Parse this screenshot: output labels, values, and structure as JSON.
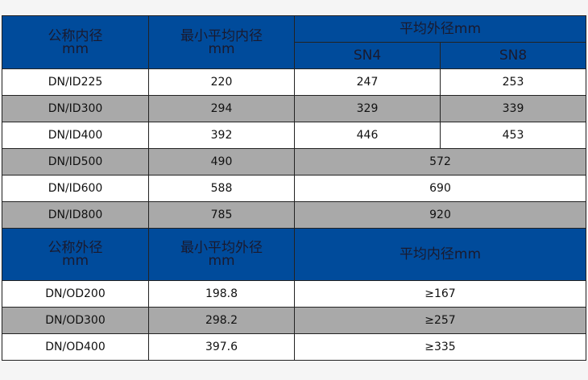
{
  "table1": {
    "header": {
      "col1_line1": "公称内径",
      "col1_line2": "mm",
      "col2_line1": "最小平均内径",
      "col2_line2": "mm",
      "col3": "平均外径mm",
      "sn4": "SN4",
      "sn8": "SN8"
    },
    "rows": [
      {
        "name": "DN/ID225",
        "min": "220",
        "sn4": "247",
        "sn8": "253"
      },
      {
        "name": "DN/ID300",
        "min": "294",
        "sn4": "329",
        "sn8": "339"
      },
      {
        "name": "DN/ID400",
        "min": "392",
        "sn4": "446",
        "sn8": "453"
      },
      {
        "name": "DN/ID500",
        "min": "490",
        "avg": "572"
      },
      {
        "name": "DN/ID600",
        "min": "588",
        "avg": "690"
      },
      {
        "name": "DN/ID800",
        "min": "785",
        "avg": "920"
      }
    ]
  },
  "table2": {
    "header": {
      "col1_line1": "公称外径",
      "col1_line2": "mm",
      "col2_line1": "最小平均外径",
      "col2_line2": "mm",
      "col3": "平均内径mm"
    },
    "rows": [
      {
        "name": "DN/OD200",
        "min": "198.8",
        "avg": "≥167"
      },
      {
        "name": "DN/OD300",
        "min": "298.2",
        "avg": "≥257"
      },
      {
        "name": "DN/OD400",
        "min": "397.6",
        "avg": "≥335"
      }
    ]
  },
  "colors": {
    "header_bg": "#004b9b",
    "row_alt": "#a9a9a9",
    "row_white": "#ffffff"
  }
}
